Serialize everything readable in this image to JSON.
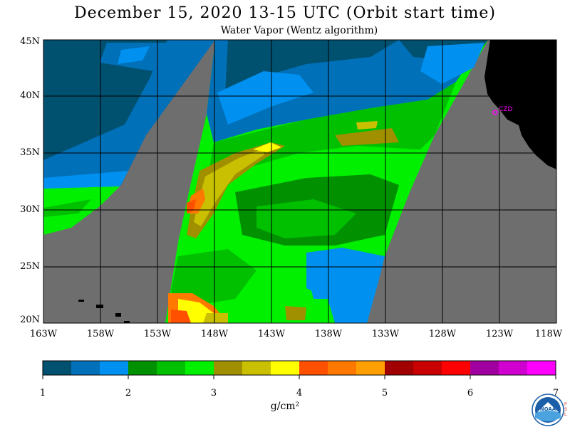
{
  "title": "December 15, 2020  13-15 UTC  (Orbit start time)",
  "subtitle": "Water Vapor (Wentz algorithm)",
  "map": {
    "lat_labels": [
      "45N",
      "40N",
      "35N",
      "30N",
      "25N",
      "20N"
    ],
    "lon_labels": [
      "163W",
      "158W",
      "153W",
      "148W",
      "143W",
      "138W",
      "133W",
      "128W",
      "123W",
      "118W"
    ],
    "station_label": "CZD",
    "colors": {
      "no_data": "#6e6e6e",
      "land": "#000000",
      "station": "#ff00ff",
      "grid": "#000000"
    }
  },
  "colorbar": {
    "ticks": [
      "1",
      "2",
      "3",
      "4",
      "5",
      "6",
      "7"
    ],
    "units": "g/cm²",
    "colors": [
      "#005070",
      "#0070b8",
      "#0090f0",
      "#009000",
      "#00c000",
      "#00f000",
      "#a09000",
      "#c8c000",
      "#ffff00",
      "#ff5000",
      "#ff7800",
      "#ffa000",
      "#a00000",
      "#c80000",
      "#ff0000",
      "#a000a0",
      "#d000d0",
      "#ff00ff"
    ]
  },
  "logo": {
    "text": "NOAA",
    "side_letters": [
      "P",
      "S",
      "L"
    ]
  }
}
